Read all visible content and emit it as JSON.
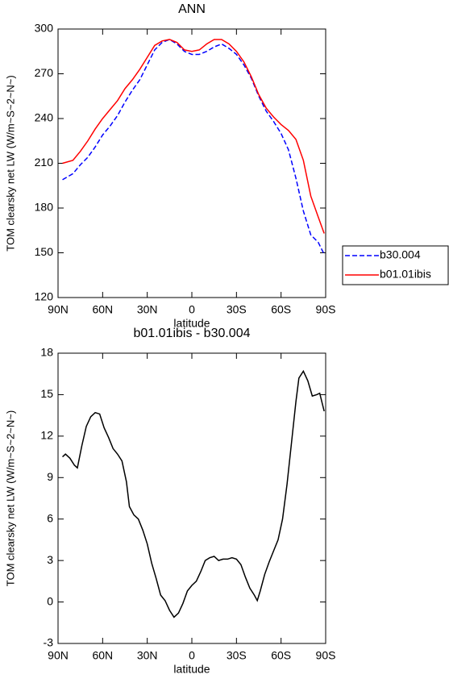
{
  "chart_data": [
    {
      "type": "line",
      "title": "ANN",
      "xlabel": "latitude",
      "ylabel": "TOM clearsky net LW (W/m~S~2~N~)",
      "x": [
        87,
        80,
        75,
        70,
        65,
        60,
        55,
        50,
        45,
        40,
        35,
        30,
        25,
        20,
        15,
        10,
        5,
        0,
        -5,
        -10,
        -15,
        -20,
        -25,
        -30,
        -35,
        -40,
        -45,
        -50,
        -55,
        -60,
        -65,
        -70,
        -75,
        -80,
        -85,
        -89
      ],
      "series": [
        {
          "name": "b30.004",
          "color": "#0000ff",
          "line_style": "dashed",
          "values": [
            199,
            203,
            209,
            214,
            221,
            229,
            235,
            242,
            251,
            259,
            266,
            276,
            286,
            291,
            293,
            290,
            285,
            283,
            283,
            285,
            288,
            290,
            287,
            283,
            276,
            267,
            255,
            245,
            238,
            230,
            219,
            200,
            178,
            162,
            157,
            149
          ]
        },
        {
          "name": "b01.01ibis",
          "color": "#ff0000",
          "line_style": "solid",
          "values": [
            210,
            212,
            218,
            225,
            233,
            240,
            246,
            252,
            260,
            266,
            273,
            281,
            289,
            292,
            293,
            291,
            286,
            285,
            286,
            290,
            293,
            293,
            290,
            285,
            278,
            268,
            256,
            247,
            241,
            236,
            232,
            226,
            212,
            188,
            174,
            163
          ]
        }
      ],
      "xlim": [
        90,
        -90
      ],
      "xticks": [
        {
          "value": 90,
          "label": "90N"
        },
        {
          "value": 60,
          "label": "60N"
        },
        {
          "value": 30,
          "label": "30N"
        },
        0,
        {
          "value": -30,
          "label": "30S"
        },
        {
          "value": -60,
          "label": "60S"
        },
        {
          "value": -90,
          "label": "90S"
        }
      ],
      "ylim": [
        120,
        300
      ],
      "yticks": [
        120,
        150,
        180,
        210,
        240,
        270,
        300
      ],
      "legend": "right"
    },
    {
      "type": "line",
      "title": "b01.01ibis - b30.004",
      "xlabel": "latitude",
      "ylabel": "TOM clearsky net LW (W/m~S~2~N~)",
      "x": [
        87,
        85,
        82,
        79,
        77,
        74,
        71,
        68,
        65,
        62,
        59,
        56,
        53,
        50,
        47,
        44,
        42,
        39,
        36,
        33,
        30,
        27,
        24,
        21,
        18,
        15,
        12,
        9,
        6,
        3,
        0,
        -3,
        -6,
        -9,
        -12,
        -15,
        -18,
        -21,
        -24,
        -27,
        -30,
        -33,
        -36,
        -39,
        -42,
        -44,
        -46,
        -49,
        -52,
        -55,
        -58,
        -61,
        -64,
        -67,
        -70,
        -72,
        -75,
        -78,
        -81,
        -84,
        -86,
        -89
      ],
      "series": [
        {
          "name": "b01.01ibis - b30.004",
          "color": "#000000",
          "line_style": "solid",
          "values": [
            10.5,
            10.7,
            10.4,
            9.9,
            9.7,
            11.3,
            12.7,
            13.4,
            13.7,
            13.6,
            12.6,
            11.9,
            11.1,
            10.7,
            10.2,
            8.7,
            6.9,
            6.3,
            6.0,
            5.2,
            4.2,
            2.8,
            1.7,
            0.5,
            0.1,
            -0.6,
            -1.1,
            -0.8,
            -0.1,
            0.8,
            1.2,
            1.5,
            2.2,
            3.0,
            3.2,
            3.3,
            3.0,
            3.1,
            3.1,
            3.2,
            3.1,
            2.7,
            1.8,
            1.0,
            0.5,
            0.1,
            0.8,
            2.0,
            2.9,
            3.7,
            4.5,
            6.0,
            8.5,
            11.5,
            14.5,
            16.2,
            16.7,
            16.0,
            14.9,
            15.0,
            15.1,
            13.8
          ]
        }
      ],
      "xlim": [
        90,
        -90
      ],
      "xticks": [
        {
          "value": 90,
          "label": "90N"
        },
        {
          "value": 60,
          "label": "60N"
        },
        {
          "value": 30,
          "label": "30N"
        },
        0,
        {
          "value": -30,
          "label": "30S"
        },
        {
          "value": -60,
          "label": "60S"
        },
        {
          "value": -90,
          "label": "90S"
        }
      ],
      "ylim": [
        -3,
        18
      ],
      "yticks": [
        -3,
        0,
        3,
        6,
        9,
        12,
        15,
        18
      ]
    }
  ]
}
